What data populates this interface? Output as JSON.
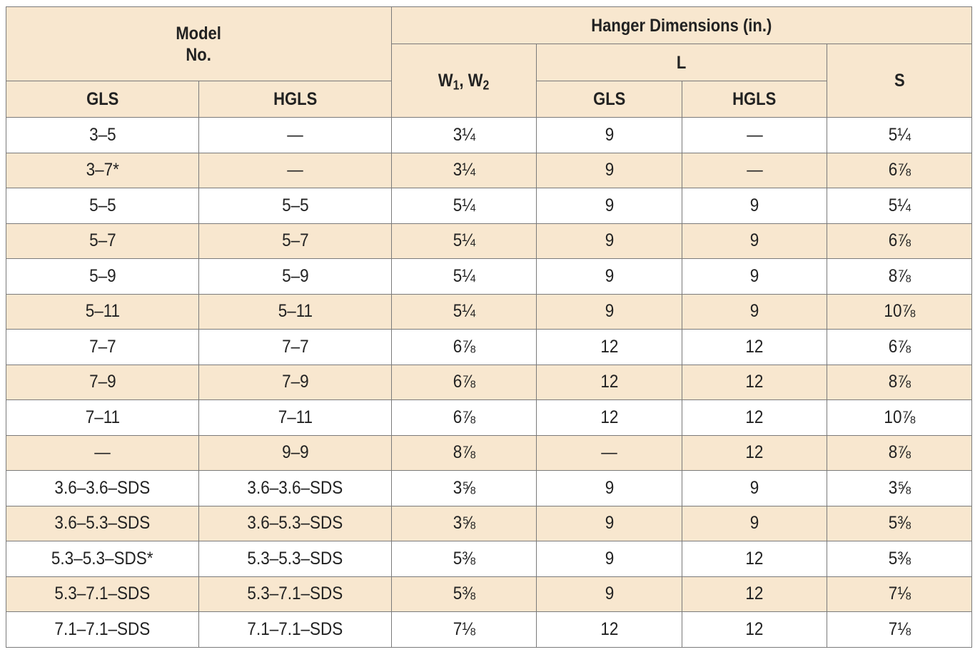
{
  "header": {
    "model_no_line1": "Model",
    "model_no_line2": "No.",
    "hanger_dimensions": "Hanger Dimensions (in.)",
    "w_label_a": "W",
    "w_sub_a": "1",
    "w_sep": ", ",
    "w_label_b": "W",
    "w_sub_b": "2",
    "l_label": "L",
    "s_label": "S",
    "gls": "GLS",
    "hgls": "HGLS",
    "l_gls": "GLS",
    "l_hgls": "HGLS"
  },
  "rows": [
    {
      "gls": "3–5",
      "hgls": "—",
      "w": "3¼",
      "l_gls": "9",
      "l_hgls": "—",
      "s": "5¼"
    },
    {
      "gls": "3–7*",
      "hgls": "—",
      "w": "3¼",
      "l_gls": "9",
      "l_hgls": "—",
      "s": "6⅞"
    },
    {
      "gls": "5–5",
      "hgls": "5–5",
      "w": "5¼",
      "l_gls": "9",
      "l_hgls": "9",
      "s": "5¼"
    },
    {
      "gls": "5–7",
      "hgls": "5–7",
      "w": "5¼",
      "l_gls": "9",
      "l_hgls": "9",
      "s": "6⅞"
    },
    {
      "gls": "5–9",
      "hgls": "5–9",
      "w": "5¼",
      "l_gls": "9",
      "l_hgls": "9",
      "s": "8⅞"
    },
    {
      "gls": "5–11",
      "hgls": "5–11",
      "w": "5¼",
      "l_gls": "9",
      "l_hgls": "9",
      "s": "10⅞"
    },
    {
      "gls": "7–7",
      "hgls": "7–7",
      "w": "6⅞",
      "l_gls": "12",
      "l_hgls": "12",
      "s": "6⅞"
    },
    {
      "gls": "7–9",
      "hgls": "7–9",
      "w": "6⅞",
      "l_gls": "12",
      "l_hgls": "12",
      "s": "8⅞"
    },
    {
      "gls": "7–11",
      "hgls": "7–11",
      "w": "6⅞",
      "l_gls": "12",
      "l_hgls": "12",
      "s": "10⅞"
    },
    {
      "gls": "—",
      "hgls": "9–9",
      "w": "8⅞",
      "l_gls": "—",
      "l_hgls": "12",
      "s": "8⅞"
    },
    {
      "gls": "3.6–3.6–SDS",
      "hgls": "3.6–3.6–SDS",
      "w": "3⅝",
      "l_gls": "9",
      "l_hgls": "9",
      "s": "3⅝"
    },
    {
      "gls": "3.6–5.3–SDS",
      "hgls": "3.6–5.3–SDS",
      "w": "3⅝",
      "l_gls": "9",
      "l_hgls": "9",
      "s": "5⅜"
    },
    {
      "gls": "5.3–5.3–SDS*",
      "hgls": "5.3–5.3–SDS",
      "w": "5⅜",
      "l_gls": "9",
      "l_hgls": "12",
      "s": "5⅜"
    },
    {
      "gls": "5.3–7.1–SDS",
      "hgls": "5.3–7.1–SDS",
      "w": "5⅜",
      "l_gls": "9",
      "l_hgls": "12",
      "s": "7⅛"
    },
    {
      "gls": "7.1–7.1–SDS",
      "hgls": "7.1–7.1–SDS",
      "w": "7⅛",
      "l_gls": "12",
      "l_hgls": "12",
      "s": "7⅛"
    }
  ],
  "colors": {
    "header_fill": "#f8e7cf",
    "alt_row_fill": "#f8e7cf",
    "border": "#7a7a7a",
    "text": "#222222"
  }
}
